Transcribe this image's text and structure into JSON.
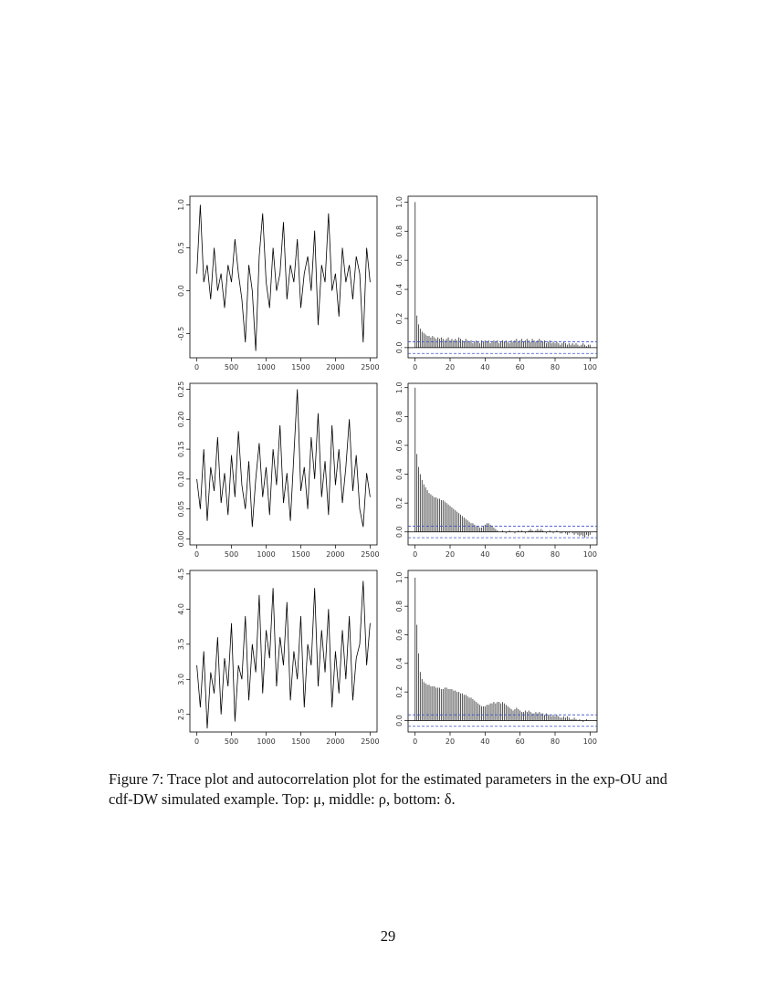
{
  "chart_data": [
    {
      "type": "trace",
      "color": "#000000",
      "x": [
        0,
        50,
        100,
        150,
        200,
        250,
        300,
        350,
        400,
        450,
        500,
        550,
        600,
        650,
        700,
        750,
        800,
        850,
        900,
        950,
        1000,
        1050,
        1100,
        1150,
        1200,
        1250,
        1300,
        1350,
        1400,
        1450,
        1500,
        1550,
        1600,
        1650,
        1700,
        1750,
        1800,
        1850,
        1900,
        1950,
        2000,
        2050,
        2100,
        2150,
        2200,
        2250,
        2300,
        2350,
        2400,
        2450,
        2500
      ],
      "values": [
        0.2,
        1.0,
        0.1,
        0.3,
        -0.1,
        0.5,
        0.0,
        0.2,
        -0.2,
        0.3,
        0.1,
        0.6,
        0.2,
        -0.1,
        -0.6,
        0.3,
        0.0,
        -0.7,
        0.4,
        0.9,
        0.1,
        -0.2,
        0.5,
        0.0,
        0.2,
        0.8,
        -0.1,
        0.3,
        0.1,
        0.6,
        -0.2,
        0.2,
        0.4,
        0.0,
        0.7,
        -0.4,
        0.3,
        0.1,
        0.9,
        0.0,
        0.2,
        -0.3,
        0.5,
        0.1,
        0.3,
        -0.1,
        0.4,
        0.2,
        -0.6,
        0.5,
        0.1
      ],
      "xlim": [
        -100,
        2600
      ],
      "xticks": [
        0,
        500,
        1000,
        1500,
        2000,
        2500
      ],
      "ylim": [
        -0.78,
        1.1
      ],
      "yticks": [
        -0.5,
        {
          "value": 0,
          "label": "0.0"
        },
        0.5,
        {
          "value": 1,
          "label": "1.0"
        }
      ]
    },
    {
      "type": "acf",
      "color": "#555555",
      "band_color": "#3f51c8",
      "confidence_band": [
        -0.04,
        0.04
      ],
      "x": [
        0,
        1,
        2,
        3,
        4,
        5,
        6,
        7,
        8,
        9,
        10,
        11,
        12,
        13,
        14,
        15,
        16,
        17,
        18,
        19,
        20,
        21,
        22,
        23,
        24,
        25,
        26,
        27,
        28,
        29,
        30,
        31,
        32,
        33,
        34,
        35,
        36,
        37,
        38,
        39,
        40,
        41,
        42,
        43,
        44,
        45,
        46,
        47,
        48,
        49,
        50,
        51,
        52,
        53,
        54,
        55,
        56,
        57,
        58,
        59,
        60,
        61,
        62,
        63,
        64,
        65,
        66,
        67,
        68,
        69,
        70,
        71,
        72,
        73,
        74,
        75,
        76,
        77,
        78,
        79,
        80,
        81,
        82,
        83,
        84,
        85,
        86,
        87,
        88,
        89,
        90,
        91,
        92,
        93,
        94,
        95,
        96,
        97,
        98,
        99,
        100
      ],
      "values": [
        1.0,
        0.22,
        0.16,
        0.13,
        0.11,
        0.1,
        0.09,
        0.08,
        0.08,
        0.07,
        0.08,
        0.07,
        0.06,
        0.07,
        0.06,
        0.07,
        0.06,
        0.05,
        0.06,
        0.07,
        0.05,
        0.06,
        0.05,
        0.06,
        0.05,
        0.07,
        0.06,
        0.05,
        0.04,
        0.06,
        0.05,
        0.04,
        0.05,
        0.03,
        0.04,
        0.05,
        0.04,
        0.03,
        0.05,
        0.04,
        0.05,
        0.04,
        0.05,
        0.03,
        0.04,
        0.05,
        0.04,
        0.05,
        0.03,
        0.04,
        0.05,
        0.04,
        0.05,
        0.04,
        0.03,
        0.05,
        0.04,
        0.05,
        0.06,
        0.04,
        0.05,
        0.06,
        0.04,
        0.05,
        0.06,
        0.05,
        0.04,
        0.06,
        0.05,
        0.04,
        0.05,
        0.06,
        0.05,
        0.04,
        0.05,
        0.03,
        0.04,
        0.05,
        0.03,
        0.04,
        0.03,
        0.04,
        0.03,
        0.02,
        0.03,
        0.04,
        0.03,
        0.02,
        0.03,
        0.02,
        0.03,
        0.02,
        0.03,
        0.02,
        0.01,
        0.02,
        0.03,
        0.02,
        0.01,
        0.02,
        0.02
      ],
      "xlim": [
        -4,
        104
      ],
      "xticks": [
        0,
        20,
        40,
        60,
        80,
        100
      ],
      "ylim": [
        -0.07,
        1.04
      ],
      "yticks": [
        {
          "value": 0,
          "label": "0.0"
        },
        0.2,
        0.4,
        0.6,
        0.8,
        {
          "value": 1,
          "label": "1.0"
        }
      ]
    },
    {
      "type": "trace",
      "color": "#000000",
      "x": [
        0,
        50,
        100,
        150,
        200,
        250,
        300,
        350,
        400,
        450,
        500,
        550,
        600,
        650,
        700,
        750,
        800,
        850,
        900,
        950,
        1000,
        1050,
        1100,
        1150,
        1200,
        1250,
        1300,
        1350,
        1400,
        1450,
        1500,
        1550,
        1600,
        1650,
        1700,
        1750,
        1800,
        1850,
        1900,
        1950,
        2000,
        2050,
        2100,
        2150,
        2200,
        2250,
        2300,
        2350,
        2400,
        2450,
        2500
      ],
      "values": [
        0.1,
        0.05,
        0.15,
        0.03,
        0.12,
        0.08,
        0.17,
        0.06,
        0.11,
        0.04,
        0.14,
        0.07,
        0.18,
        0.09,
        0.05,
        0.13,
        0.02,
        0.1,
        0.16,
        0.07,
        0.12,
        0.04,
        0.15,
        0.09,
        0.19,
        0.06,
        0.11,
        0.03,
        0.14,
        0.25,
        0.08,
        0.12,
        0.05,
        0.17,
        0.1,
        0.21,
        0.07,
        0.13,
        0.04,
        0.19,
        0.09,
        0.15,
        0.06,
        0.12,
        0.2,
        0.08,
        0.14,
        0.05,
        0.02,
        0.11,
        0.07
      ],
      "xlim": [
        -100,
        2600
      ],
      "xticks": [
        0,
        500,
        1000,
        1500,
        2000,
        2500
      ],
      "ylim": [
        -0.01,
        0.26
      ],
      "yticks": [
        {
          "value": 0,
          "label": "0.00"
        },
        0.05,
        {
          "value": 0.1,
          "label": "0.10"
        },
        0.15,
        {
          "value": 0.2,
          "label": "0.20"
        },
        0.25
      ]
    },
    {
      "type": "acf",
      "color": "#555555",
      "band_color": "#3f51c8",
      "confidence_band": [
        -0.04,
        0.04
      ],
      "x": [
        0,
        1,
        2,
        3,
        4,
        5,
        6,
        7,
        8,
        9,
        10,
        11,
        12,
        13,
        14,
        15,
        16,
        17,
        18,
        19,
        20,
        21,
        22,
        23,
        24,
        25,
        26,
        27,
        28,
        29,
        30,
        31,
        32,
        33,
        34,
        35,
        36,
        37,
        38,
        39,
        40,
        41,
        42,
        43,
        44,
        45,
        46,
        47,
        48,
        49,
        50,
        51,
        52,
        53,
        54,
        55,
        56,
        57,
        58,
        59,
        60,
        61,
        62,
        63,
        64,
        65,
        66,
        67,
        68,
        69,
        70,
        71,
        72,
        73,
        74,
        75,
        76,
        77,
        78,
        79,
        80,
        81,
        82,
        83,
        84,
        85,
        86,
        87,
        88,
        89,
        90,
        91,
        92,
        93,
        94,
        95,
        96,
        97,
        98,
        99,
        100
      ],
      "values": [
        1.0,
        0.54,
        0.45,
        0.4,
        0.36,
        0.33,
        0.31,
        0.29,
        0.27,
        0.26,
        0.25,
        0.24,
        0.24,
        0.23,
        0.23,
        0.22,
        0.22,
        0.21,
        0.2,
        0.19,
        0.18,
        0.17,
        0.16,
        0.15,
        0.14,
        0.13,
        0.12,
        0.11,
        0.1,
        0.09,
        0.08,
        0.07,
        0.06,
        0.06,
        0.05,
        0.04,
        0.04,
        0.03,
        0.03,
        0.04,
        0.05,
        0.06,
        0.06,
        0.05,
        0.04,
        0.03,
        0.02,
        0.01,
        0.0,
        0.0,
        0.01,
        0.0,
        -0.01,
        0.0,
        0.01,
        0.0,
        0.0,
        -0.01,
        0.0,
        0.01,
        0.0,
        0.01,
        0.0,
        -0.01,
        0.0,
        0.01,
        0.02,
        0.01,
        0.0,
        0.01,
        0.02,
        0.01,
        0.02,
        0.01,
        0.0,
        -0.01,
        0.0,
        0.01,
        0.0,
        -0.01,
        0.0,
        0.01,
        0.0,
        -0.01,
        -0.01,
        0.0,
        -0.01,
        -0.02,
        -0.01,
        0.0,
        -0.01,
        -0.02,
        -0.01,
        -0.02,
        -0.03,
        -0.02,
        -0.03,
        -0.04,
        -0.02,
        -0.03,
        -0.02
      ],
      "xlim": [
        -4,
        104
      ],
      "xticks": [
        0,
        20,
        40,
        60,
        80,
        100
      ],
      "ylim": [
        -0.09,
        1.03
      ],
      "yticks": [
        {
          "value": 0,
          "label": "0.0"
        },
        0.2,
        0.4,
        0.6,
        0.8,
        {
          "value": 1,
          "label": "1.0"
        }
      ]
    },
    {
      "type": "trace",
      "color": "#000000",
      "x": [
        0,
        50,
        100,
        150,
        200,
        250,
        300,
        350,
        400,
        450,
        500,
        550,
        600,
        650,
        700,
        750,
        800,
        850,
        900,
        950,
        1000,
        1050,
        1100,
        1150,
        1200,
        1250,
        1300,
        1350,
        1400,
        1450,
        1500,
        1550,
        1600,
        1650,
        1700,
        1750,
        1800,
        1850,
        1900,
        1950,
        2000,
        2050,
        2100,
        2150,
        2200,
        2250,
        2300,
        2350,
        2400,
        2450,
        2500
      ],
      "values": [
        3.2,
        2.6,
        3.4,
        2.3,
        3.1,
        2.8,
        3.6,
        2.5,
        3.3,
        2.9,
        3.8,
        2.4,
        3.2,
        3.0,
        3.9,
        2.7,
        3.5,
        3.1,
        4.2,
        2.8,
        3.7,
        3.3,
        4.3,
        2.9,
        3.6,
        3.2,
        4.1,
        2.7,
        3.4,
        3.0,
        3.9,
        2.6,
        3.5,
        3.2,
        4.3,
        2.9,
        3.7,
        3.1,
        4.0,
        2.6,
        3.4,
        2.8,
        3.7,
        3.0,
        3.9,
        2.7,
        3.3,
        3.5,
        4.4,
        3.2,
        3.8
      ],
      "xlim": [
        -100,
        2600
      ],
      "xticks": [
        0,
        500,
        1000,
        1500,
        2000,
        2500
      ],
      "ylim": [
        2.25,
        4.55
      ],
      "yticks": [
        2.5,
        {
          "value": 3,
          "label": "3.0"
        },
        3.5,
        {
          "value": 4,
          "label": "4.0"
        },
        4.5
      ]
    },
    {
      "type": "acf",
      "color": "#555555",
      "band_color": "#3f51c8",
      "confidence_band": [
        -0.04,
        0.04
      ],
      "x": [
        0,
        1,
        2,
        3,
        4,
        5,
        6,
        7,
        8,
        9,
        10,
        11,
        12,
        13,
        14,
        15,
        16,
        17,
        18,
        19,
        20,
        21,
        22,
        23,
        24,
        25,
        26,
        27,
        28,
        29,
        30,
        31,
        32,
        33,
        34,
        35,
        36,
        37,
        38,
        39,
        40,
        41,
        42,
        43,
        44,
        45,
        46,
        47,
        48,
        49,
        50,
        51,
        52,
        53,
        54,
        55,
        56,
        57,
        58,
        59,
        60,
        61,
        62,
        63,
        64,
        65,
        66,
        67,
        68,
        69,
        70,
        71,
        72,
        73,
        74,
        75,
        76,
        77,
        78,
        79,
        80,
        81,
        82,
        83,
        84,
        85,
        86,
        87,
        88,
        89,
        90,
        91,
        92,
        93,
        94,
        95,
        96,
        97,
        98,
        99,
        100
      ],
      "values": [
        1.0,
        0.67,
        0.47,
        0.34,
        0.29,
        0.27,
        0.26,
        0.25,
        0.25,
        0.24,
        0.24,
        0.24,
        0.23,
        0.23,
        0.23,
        0.22,
        0.22,
        0.23,
        0.23,
        0.22,
        0.22,
        0.22,
        0.21,
        0.21,
        0.2,
        0.2,
        0.19,
        0.19,
        0.18,
        0.18,
        0.17,
        0.16,
        0.16,
        0.15,
        0.14,
        0.13,
        0.12,
        0.11,
        0.1,
        0.1,
        0.1,
        0.11,
        0.11,
        0.12,
        0.12,
        0.13,
        0.12,
        0.13,
        0.13,
        0.12,
        0.13,
        0.12,
        0.11,
        0.1,
        0.09,
        0.08,
        0.07,
        0.08,
        0.09,
        0.08,
        0.07,
        0.06,
        0.06,
        0.07,
        0.06,
        0.07,
        0.06,
        0.05,
        0.05,
        0.06,
        0.05,
        0.06,
        0.05,
        0.05,
        0.04,
        0.05,
        0.04,
        0.04,
        0.03,
        0.04,
        0.03,
        0.04,
        0.03,
        0.02,
        0.02,
        0.03,
        0.02,
        0.03,
        0.02,
        0.01,
        0.01,
        0.02,
        0.01,
        0.0,
        0.01,
        0.0,
        -0.01,
        0.0,
        0.01,
        0.0,
        0.0
      ],
      "xlim": [
        -4,
        104
      ],
      "xticks": [
        0,
        20,
        40,
        60,
        80,
        100
      ],
      "ylim": [
        -0.08,
        1.05
      ],
      "yticks": [
        {
          "value": 0,
          "label": "0.0"
        },
        0.2,
        0.4,
        0.6,
        0.8,
        {
          "value": 1,
          "label": "1.0"
        }
      ]
    }
  ],
  "caption": "Figure 7: Trace plot and autocorrelation plot for the estimated parameters in the exp-OU and cdf-DW simulated example. Top: μ, middle: ρ, bottom: δ.",
  "page_number": "29"
}
